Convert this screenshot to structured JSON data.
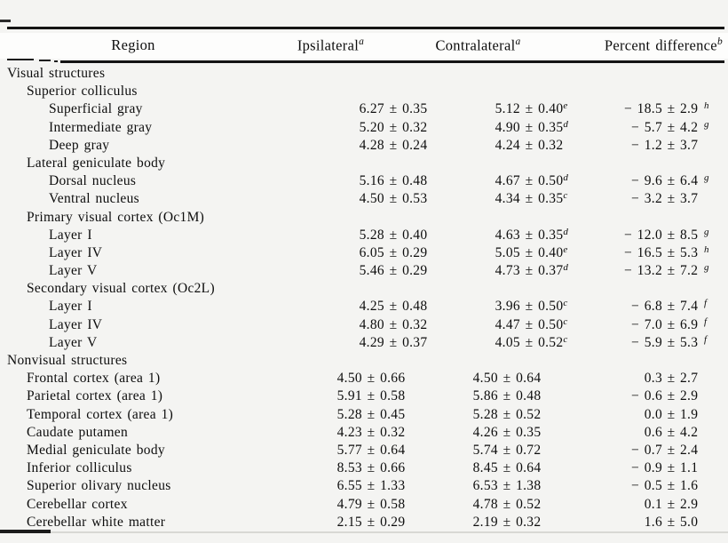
{
  "colors": {
    "background": "#f4f4f2",
    "header_band": "#fdfdfc",
    "text": "#0d0d0d",
    "rule": "#141414",
    "faint_rule": "#d8d8d4"
  },
  "table": {
    "pm_symbol": "±",
    "headers": {
      "region": "Region",
      "ipsilateral": "Ipsilateral",
      "ipsilateral_sup": "a",
      "contralateral": "Contralateral",
      "contralateral_sup": "a",
      "percent": "Percent difference",
      "percent_sup": "b"
    },
    "rows": [
      {
        "indent": 0,
        "region": "Visual structures"
      },
      {
        "indent": 1,
        "region": "Superior colliculus"
      },
      {
        "indent": 2,
        "region": "Superficial gray",
        "ipsi": "6.27 ± 0.35",
        "contra": "5.12 ± 0.40",
        "contra_sup": "e",
        "pct_num": "− 18.5",
        "pct_err": "2.9",
        "pct_sup": "h"
      },
      {
        "indent": 2,
        "region": "Intermediate gray",
        "ipsi": "5.20 ± 0.32",
        "contra": "4.90 ± 0.35",
        "contra_sup": "d",
        "pct_num": "− 5.7",
        "pct_err": "4.2",
        "pct_sup": "g"
      },
      {
        "indent": 2,
        "region": "Deep gray",
        "ipsi": "4.28 ± 0.24",
        "contra": "4.24 ± 0.32",
        "pct_num": "− 1.2",
        "pct_err": "3.7"
      },
      {
        "indent": 1,
        "region": "Lateral geniculate body"
      },
      {
        "indent": 2,
        "region": "Dorsal nucleus",
        "ipsi": "5.16 ± 0.48",
        "contra": "4.67 ± 0.50",
        "contra_sup": "d",
        "pct_num": "− 9.6",
        "pct_err": "6.4",
        "pct_sup": "g"
      },
      {
        "indent": 2,
        "region": "Ventral nucleus",
        "ipsi": "4.50 ± 0.53",
        "contra": "4.34 ± 0.35",
        "contra_sup": "c",
        "pct_num": "− 3.2",
        "pct_err": "3.7"
      },
      {
        "indent": 1,
        "region": "Primary visual cortex (Oc1M)"
      },
      {
        "indent": 2,
        "region": "Layer I",
        "ipsi": "5.28 ± 0.40",
        "contra": "4.63 ± 0.35",
        "contra_sup": "d",
        "pct_num": "− 12.0",
        "pct_err": "8.5",
        "pct_sup": "g"
      },
      {
        "indent": 2,
        "region": "Layer IV",
        "ipsi": "6.05 ± 0.29",
        "contra": "5.05 ± 0.40",
        "contra_sup": "e",
        "pct_num": "− 16.5",
        "pct_err": "5.3",
        "pct_sup": "h"
      },
      {
        "indent": 2,
        "region": "Layer V",
        "ipsi": "5.46 ± 0.29",
        "contra": "4.73 ± 0.37",
        "contra_sup": "d",
        "pct_num": "− 13.2",
        "pct_err": "7.2",
        "pct_sup": "g"
      },
      {
        "indent": 1,
        "region": "Secondary visual cortex (Oc2L)"
      },
      {
        "indent": 2,
        "region": "Layer I",
        "ipsi": "4.25 ± 0.48",
        "contra": "3.96 ± 0.50",
        "contra_sup": "c",
        "pct_num": "− 6.8",
        "pct_err": "7.4",
        "pct_sup": "f"
      },
      {
        "indent": 2,
        "region": "Layer IV",
        "ipsi": "4.80 ± 0.32",
        "contra": "4.47 ± 0.50",
        "contra_sup": "c",
        "pct_num": "− 7.0",
        "pct_err": "6.9",
        "pct_sup": "f"
      },
      {
        "indent": 2,
        "region": "Layer V",
        "ipsi": "4.29 ± 0.37",
        "contra": "4.05 ± 0.52",
        "contra_sup": "c",
        "pct_num": "− 5.9",
        "pct_err": "5.3",
        "pct_sup": "f"
      },
      {
        "indent": 0,
        "region": "Nonvisual structures"
      },
      {
        "indent": 1,
        "region": "Frontal cortex (area 1)",
        "ipsi": "4.50 ± 0.66",
        "contra": "4.50 ± 0.64",
        "pct_num": "0.3",
        "pct_err": "2.7"
      },
      {
        "indent": 1,
        "region": "Parietal cortex (area 1)",
        "ipsi": "5.91 ± 0.58",
        "contra": "5.86 ± 0.48",
        "pct_num": "− 0.6",
        "pct_err": "2.9"
      },
      {
        "indent": 1,
        "region": "Temporal cortex (area 1)",
        "ipsi": "5.28 ± 0.45",
        "contra": "5.28 ± 0.52",
        "pct_num": "0.0",
        "pct_err": "1.9"
      },
      {
        "indent": 1,
        "region": "Caudate putamen",
        "ipsi": "4.23 ± 0.32",
        "contra": "4.26 ± 0.35",
        "pct_num": "0.6",
        "pct_err": "4.2"
      },
      {
        "indent": 1,
        "region": "Medial geniculate body",
        "ipsi": "5.77 ± 0.64",
        "contra": "5.74 ± 0.72",
        "pct_num": "− 0.7",
        "pct_err": "2.4"
      },
      {
        "indent": 1,
        "region": "Inferior colliculus",
        "ipsi": "8.53 ± 0.66",
        "contra": "8.45 ± 0.64",
        "pct_num": "− 0.9",
        "pct_err": "1.1"
      },
      {
        "indent": 1,
        "region": "Superior olivary nucleus",
        "ipsi": "6.55 ± 1.33",
        "contra": "6.53 ± 1.38",
        "pct_num": "− 0.5",
        "pct_err": "1.6"
      },
      {
        "indent": 1,
        "region": "Cerebellar cortex",
        "ipsi": "4.79 ± 0.58",
        "contra": "4.78 ± 0.52",
        "pct_num": "0.1",
        "pct_err": "2.9"
      },
      {
        "indent": 1,
        "region": "Cerebellar white matter",
        "ipsi": "2.15 ± 0.29",
        "contra": "2.19 ± 0.32",
        "pct_num": "1.6",
        "pct_err": "5.0"
      }
    ]
  }
}
